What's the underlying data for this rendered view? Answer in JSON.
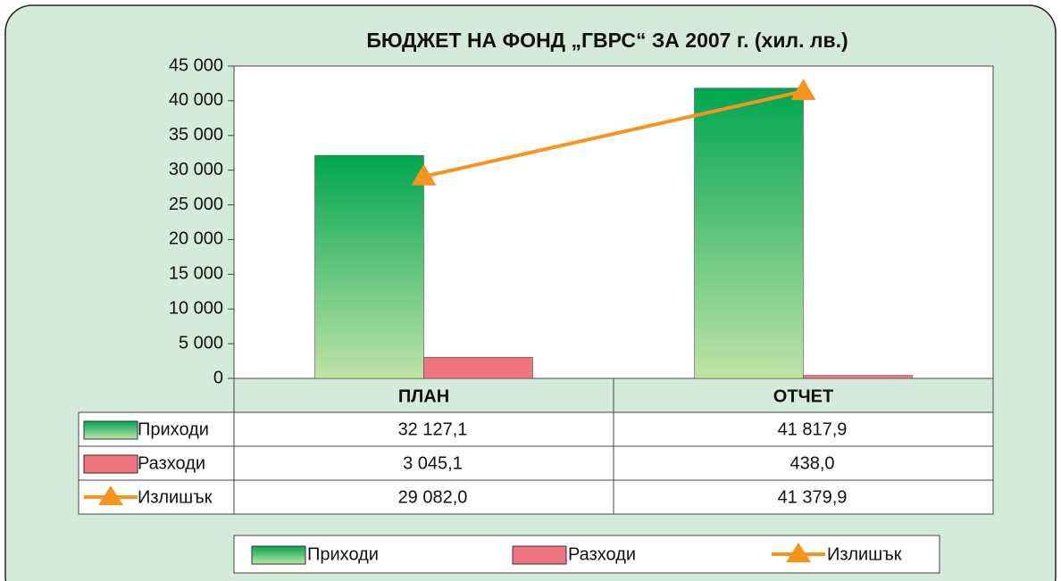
{
  "chart_data": {
    "type": "bar",
    "title": "БЮДЖЕТ НА ФОНД „ГВРС“ ЗА 2007 г. (хил. лв.)",
    "categories": [
      "ПЛАН",
      "ОТЧЕТ"
    ],
    "series": [
      {
        "name": "Приходи",
        "type": "bar",
        "color": "#00a651",
        "values": [
          32127.1,
          41817.9
        ],
        "value_labels": [
          "32 127,1",
          "41 817,9"
        ]
      },
      {
        "name": "Разходи",
        "type": "bar",
        "color": "#f07480",
        "values": [
          3045.1,
          438.0
        ],
        "value_labels": [
          "3 045,1",
          "438,0"
        ]
      },
      {
        "name": "Излишък",
        "type": "line",
        "color": "#f7941d",
        "values": [
          29082.0,
          41379.9
        ],
        "value_labels": [
          "29 082,0",
          "41 379,9"
        ]
      }
    ],
    "ylim": [
      0,
      45000
    ],
    "yticks": [
      0,
      {
        "value": 5000,
        "label": "5 000"
      },
      {
        "value": 10000,
        "label": "10 000"
      },
      {
        "value": 15000,
        "label": "15 000"
      },
      {
        "value": 20000,
        "label": "20 000"
      },
      {
        "value": 25000,
        "label": "25 000"
      },
      {
        "value": 30000,
        "label": "30 000"
      },
      {
        "value": 35000,
        "label": "35 000"
      },
      {
        "value": 40000,
        "label": "40 000"
      },
      {
        "value": 45000,
        "label": "45 000"
      }
    ],
    "legend": "bottom"
  }
}
